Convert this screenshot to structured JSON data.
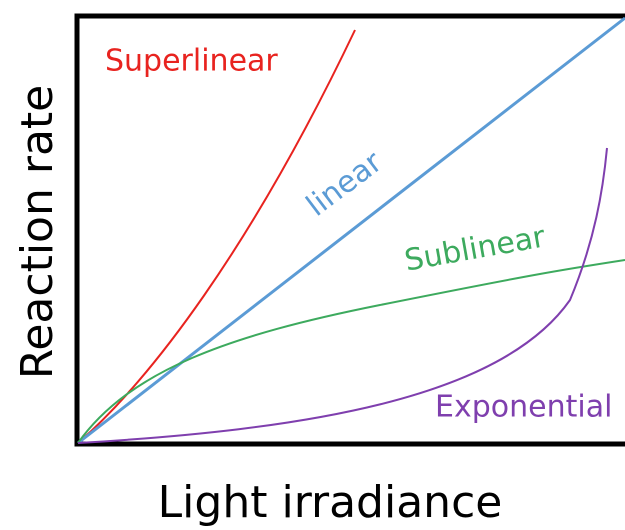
{
  "x_label": "Light irradiance",
  "y_label": "Reaction rate",
  "curves": [
    {
      "label": "Superlinear",
      "color": "#e8231f"
    },
    {
      "label": "linear",
      "color": "#5b9bd5"
    },
    {
      "label": "Sublinear",
      "color": "#3daa5e"
    },
    {
      "label": "Exponential",
      "color": "#7f3fae"
    }
  ]
}
